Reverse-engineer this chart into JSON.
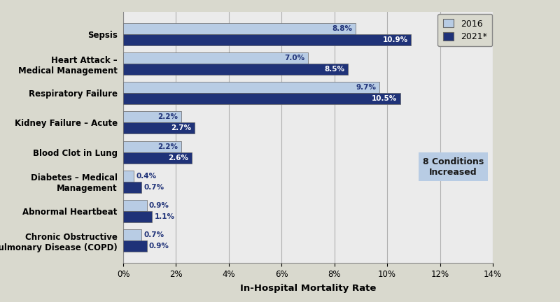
{
  "categories": [
    "Sepsis",
    "Heart Attack –\nMedical Management",
    "Respiratory Failure",
    "Kidney Failure – Acute",
    "Blood Clot in Lung",
    "Diabetes – Medical\nManagement",
    "Abnormal Heartbeat",
    "Chronic Obstructive\nPulmonary Disease (COPD)"
  ],
  "values_2016": [
    8.8,
    7.0,
    9.7,
    2.2,
    2.2,
    0.4,
    0.9,
    0.7
  ],
  "values_2021": [
    10.9,
    8.5,
    10.5,
    2.7,
    2.6,
    0.7,
    1.1,
    0.9
  ],
  "color_2016": "#b8cce4",
  "color_2021": "#1f3278",
  "background_color": "#d9d9ce",
  "plot_bg_color": "#ebebeb",
  "xlabel": "In-Hospital Mortality Rate",
  "xlim": [
    0,
    14
  ],
  "xticks": [
    0,
    2,
    4,
    6,
    8,
    10,
    12,
    14
  ],
  "xtick_labels": [
    "0%",
    "2%",
    "4%",
    "6%",
    "8%",
    "10%",
    "12%",
    "14%"
  ],
  "bar_height": 0.38,
  "label_color_light": "#ffffff",
  "label_color_dark": "#1f3278",
  "annotation_box_text": "8 Conditions\nIncreased",
  "annotation_box_color": "#b8cce4",
  "legend_2016": "2016",
  "legend_2021": "2021*",
  "figsize": [
    8.0,
    4.32
  ],
  "dpi": 100
}
